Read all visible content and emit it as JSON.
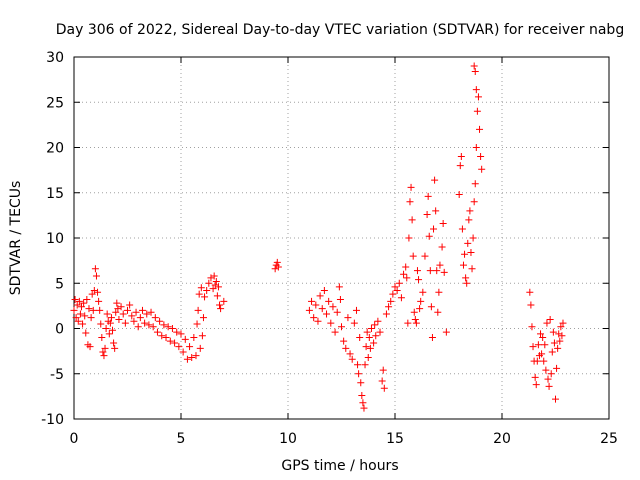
{
  "chart_data": {
    "type": "scatter",
    "title": "Day 306 of 2022, Sidereal Day-to-day VTEC variation (SDTVAR) for receiver nabg",
    "xlabel": "GPS time / hours",
    "ylabel": "SDTVAR / TECUs",
    "xlim": [
      0,
      25
    ],
    "ylim": [
      -10,
      30
    ],
    "xticks": [
      0,
      5,
      10,
      15,
      20,
      25
    ],
    "xtick_labels": [
      "0",
      "5",
      "10",
      "15",
      "20",
      "25"
    ],
    "yticks": [
      -10,
      -5,
      0,
      5,
      10,
      15,
      20,
      25,
      30
    ],
    "ytick_labels": [
      "-10",
      "-5",
      "0",
      "5",
      "10",
      "15",
      "20",
      "25",
      "30"
    ],
    "grid": true,
    "marker": "+",
    "series": [
      {
        "name": "SDTVAR",
        "color": "#ff0000",
        "points": [
          [
            0.0,
            2.0
          ],
          [
            0.05,
            3.2
          ],
          [
            0.1,
            1.2
          ],
          [
            0.15,
            2.6
          ],
          [
            0.2,
            0.8
          ],
          [
            0.25,
            3.0
          ],
          [
            0.3,
            1.6
          ],
          [
            0.35,
            2.4
          ],
          [
            0.4,
            0.5
          ],
          [
            0.45,
            2.8
          ],
          [
            0.5,
            1.4
          ],
          [
            0.55,
            -0.5
          ],
          [
            0.6,
            3.2
          ],
          [
            0.65,
            -1.8
          ],
          [
            0.7,
            2.2
          ],
          [
            0.75,
            -2.0
          ],
          [
            0.8,
            1.2
          ],
          [
            0.85,
            3.8
          ],
          [
            0.9,
            2.0
          ],
          [
            0.95,
            4.2
          ],
          [
            1.0,
            6.6
          ],
          [
            1.05,
            5.8
          ],
          [
            1.1,
            4.0
          ],
          [
            1.15,
            3.0
          ],
          [
            1.2,
            2.0
          ],
          [
            1.25,
            0.5
          ],
          [
            1.3,
            -1.0
          ],
          [
            1.35,
            -2.6
          ],
          [
            1.4,
            -3.0
          ],
          [
            1.45,
            -2.2
          ],
          [
            1.5,
            0.0
          ],
          [
            1.55,
            1.6
          ],
          [
            1.6,
            0.8
          ],
          [
            1.65,
            -0.6
          ],
          [
            1.7,
            0.6
          ],
          [
            1.75,
            1.2
          ],
          [
            1.8,
            -0.2
          ],
          [
            1.85,
            -1.6
          ],
          [
            1.9,
            -2.2
          ],
          [
            1.95,
            1.8
          ],
          [
            2.0,
            2.8
          ],
          [
            2.05,
            2.2
          ],
          [
            2.1,
            1.0
          ],
          [
            2.2,
            2.4
          ],
          [
            2.3,
            1.6
          ],
          [
            2.4,
            0.6
          ],
          [
            2.5,
            2.0
          ],
          [
            2.6,
            2.6
          ],
          [
            2.7,
            1.4
          ],
          [
            2.8,
            0.8
          ],
          [
            2.9,
            1.8
          ],
          [
            3.0,
            0.2
          ],
          [
            3.1,
            1.2
          ],
          [
            3.2,
            2.0
          ],
          [
            3.3,
            0.6
          ],
          [
            3.4,
            1.6
          ],
          [
            3.5,
            0.4
          ],
          [
            3.6,
            1.8
          ],
          [
            3.7,
            0.2
          ],
          [
            3.8,
            1.2
          ],
          [
            3.9,
            -0.4
          ],
          [
            4.0,
            0.8
          ],
          [
            4.1,
            -0.8
          ],
          [
            4.2,
            0.4
          ],
          [
            4.3,
            -1.0
          ],
          [
            4.4,
            0.2
          ],
          [
            4.5,
            -1.4
          ],
          [
            4.6,
            0.0
          ],
          [
            4.7,
            -1.6
          ],
          [
            4.8,
            -0.4
          ],
          [
            4.9,
            -2.0
          ],
          [
            5.0,
            -0.6
          ],
          [
            5.1,
            -2.6
          ],
          [
            5.2,
            -1.2
          ],
          [
            5.3,
            -3.4
          ],
          [
            5.4,
            -2.0
          ],
          [
            5.5,
            -3.2
          ],
          [
            5.6,
            -1.0
          ],
          [
            5.7,
            -3.0
          ],
          [
            5.75,
            0.5
          ],
          [
            5.8,
            2.0
          ],
          [
            5.85,
            3.8
          ],
          [
            5.9,
            -2.2
          ],
          [
            5.95,
            4.5
          ],
          [
            6.0,
            -0.8
          ],
          [
            6.05,
            1.2
          ],
          [
            6.1,
            3.5
          ],
          [
            6.2,
            4.2
          ],
          [
            6.3,
            5.0
          ],
          [
            6.4,
            5.6
          ],
          [
            6.5,
            4.4
          ],
          [
            6.55,
            5.8
          ],
          [
            6.6,
            4.8
          ],
          [
            6.65,
            5.2
          ],
          [
            6.7,
            3.6
          ],
          [
            6.75,
            4.6
          ],
          [
            6.8,
            2.6
          ],
          [
            6.85,
            2.2
          ],
          [
            7.0,
            3.0
          ],
          [
            9.4,
            6.6
          ],
          [
            9.45,
            7.0
          ],
          [
            9.5,
            7.3
          ],
          [
            9.55,
            6.8
          ],
          [
            11.0,
            2.0
          ],
          [
            11.1,
            3.0
          ],
          [
            11.2,
            1.2
          ],
          [
            11.3,
            2.6
          ],
          [
            11.4,
            0.8
          ],
          [
            11.5,
            3.6
          ],
          [
            11.6,
            2.2
          ],
          [
            11.7,
            4.2
          ],
          [
            11.8,
            1.6
          ],
          [
            11.9,
            3.0
          ],
          [
            12.0,
            0.6
          ],
          [
            12.1,
            2.4
          ],
          [
            12.2,
            -0.4
          ],
          [
            12.3,
            1.8
          ],
          [
            12.4,
            4.6
          ],
          [
            12.45,
            3.2
          ],
          [
            12.5,
            0.2
          ],
          [
            12.6,
            -1.4
          ],
          [
            12.7,
            -2.2
          ],
          [
            12.8,
            1.2
          ],
          [
            12.9,
            -2.8
          ],
          [
            13.0,
            -3.4
          ],
          [
            13.1,
            0.6
          ],
          [
            13.2,
            2.0
          ],
          [
            13.25,
            -4.0
          ],
          [
            13.3,
            -5.0
          ],
          [
            13.35,
            -1.0
          ],
          [
            13.4,
            -6.0
          ],
          [
            13.45,
            -7.4
          ],
          [
            13.5,
            -8.2
          ],
          [
            13.55,
            -8.8
          ],
          [
            13.6,
            -4.0
          ],
          [
            13.65,
            -2.0
          ],
          [
            13.7,
            -0.4
          ],
          [
            13.75,
            -3.2
          ],
          [
            13.8,
            -1.0
          ],
          [
            13.85,
            -2.2
          ],
          [
            13.9,
            0.0
          ],
          [
            14.0,
            -1.6
          ],
          [
            14.05,
            0.4
          ],
          [
            14.1,
            -0.8
          ],
          [
            14.2,
            0.8
          ],
          [
            14.3,
            -0.4
          ],
          [
            14.4,
            -5.8
          ],
          [
            14.45,
            -4.6
          ],
          [
            14.5,
            -6.6
          ],
          [
            14.6,
            1.6
          ],
          [
            14.7,
            2.4
          ],
          [
            14.8,
            3.0
          ],
          [
            14.9,
            3.8
          ],
          [
            15.0,
            4.6
          ],
          [
            15.1,
            4.2
          ],
          [
            15.2,
            5.0
          ],
          [
            15.3,
            3.4
          ],
          [
            15.4,
            6.0
          ],
          [
            15.5,
            6.8
          ],
          [
            15.55,
            5.6
          ],
          [
            15.6,
            0.6
          ],
          [
            15.65,
            10.0
          ],
          [
            15.7,
            14.0
          ],
          [
            15.75,
            15.6
          ],
          [
            15.8,
            12.0
          ],
          [
            15.85,
            8.0
          ],
          [
            15.9,
            1.8
          ],
          [
            15.95,
            1.0
          ],
          [
            16.0,
            0.6
          ],
          [
            16.05,
            6.4
          ],
          [
            16.1,
            5.4
          ],
          [
            16.15,
            2.2
          ],
          [
            16.2,
            3.0
          ],
          [
            16.3,
            4.0
          ],
          [
            16.4,
            8.0
          ],
          [
            16.5,
            12.6
          ],
          [
            16.55,
            14.6
          ],
          [
            16.6,
            10.2
          ],
          [
            16.65,
            6.4
          ],
          [
            16.7,
            2.4
          ],
          [
            16.75,
            -1.0
          ],
          [
            16.8,
            11.0
          ],
          [
            16.85,
            16.4
          ],
          [
            16.9,
            13.0
          ],
          [
            16.95,
            6.4
          ],
          [
            17.0,
            1.8
          ],
          [
            17.05,
            4.0
          ],
          [
            17.1,
            7.0
          ],
          [
            17.2,
            9.0
          ],
          [
            17.25,
            11.6
          ],
          [
            17.3,
            6.2
          ],
          [
            17.4,
            -0.4
          ],
          [
            18.0,
            14.8
          ],
          [
            18.05,
            18.0
          ],
          [
            18.1,
            19.0
          ],
          [
            18.15,
            11.0
          ],
          [
            18.2,
            7.0
          ],
          [
            18.25,
            8.2
          ],
          [
            18.3,
            5.6
          ],
          [
            18.35,
            5.0
          ],
          [
            18.4,
            9.4
          ],
          [
            18.45,
            12.0
          ],
          [
            18.5,
            13.0
          ],
          [
            18.55,
            8.4
          ],
          [
            18.6,
            6.6
          ],
          [
            18.65,
            10.0
          ],
          [
            18.7,
            14.0
          ],
          [
            18.75,
            16.0
          ],
          [
            18.8,
            20.0
          ],
          [
            18.85,
            24.0
          ],
          [
            18.9,
            25.6
          ],
          [
            18.95,
            22.0
          ],
          [
            19.0,
            19.0
          ],
          [
            19.05,
            17.6
          ],
          [
            18.7,
            29.0
          ],
          [
            18.75,
            28.4
          ],
          [
            18.8,
            26.4
          ],
          [
            21.3,
            4.0
          ],
          [
            21.35,
            2.6
          ],
          [
            21.4,
            0.2
          ],
          [
            21.45,
            -2.0
          ],
          [
            21.5,
            -3.6
          ],
          [
            21.55,
            -5.4
          ],
          [
            21.6,
            -6.2
          ],
          [
            21.65,
            -3.6
          ],
          [
            21.7,
            -1.8
          ],
          [
            21.75,
            -3.0
          ],
          [
            21.8,
            -0.6
          ],
          [
            21.85,
            -2.8
          ],
          [
            21.9,
            -1.0
          ],
          [
            21.95,
            -3.6
          ],
          [
            22.0,
            -1.8
          ],
          [
            22.05,
            -4.6
          ],
          [
            22.1,
            0.6
          ],
          [
            22.15,
            -5.6
          ],
          [
            22.2,
            -6.4
          ],
          [
            22.25,
            1.0
          ],
          [
            22.3,
            -5.0
          ],
          [
            22.35,
            -2.6
          ],
          [
            22.4,
            -0.4
          ],
          [
            22.45,
            -1.6
          ],
          [
            22.5,
            -7.8
          ],
          [
            22.55,
            -4.4
          ],
          [
            22.6,
            -2.2
          ],
          [
            22.65,
            -0.6
          ],
          [
            22.7,
            -1.4
          ],
          [
            22.75,
            0.2
          ],
          [
            22.8,
            -0.8
          ],
          [
            22.85,
            0.6
          ]
        ]
      }
    ]
  }
}
